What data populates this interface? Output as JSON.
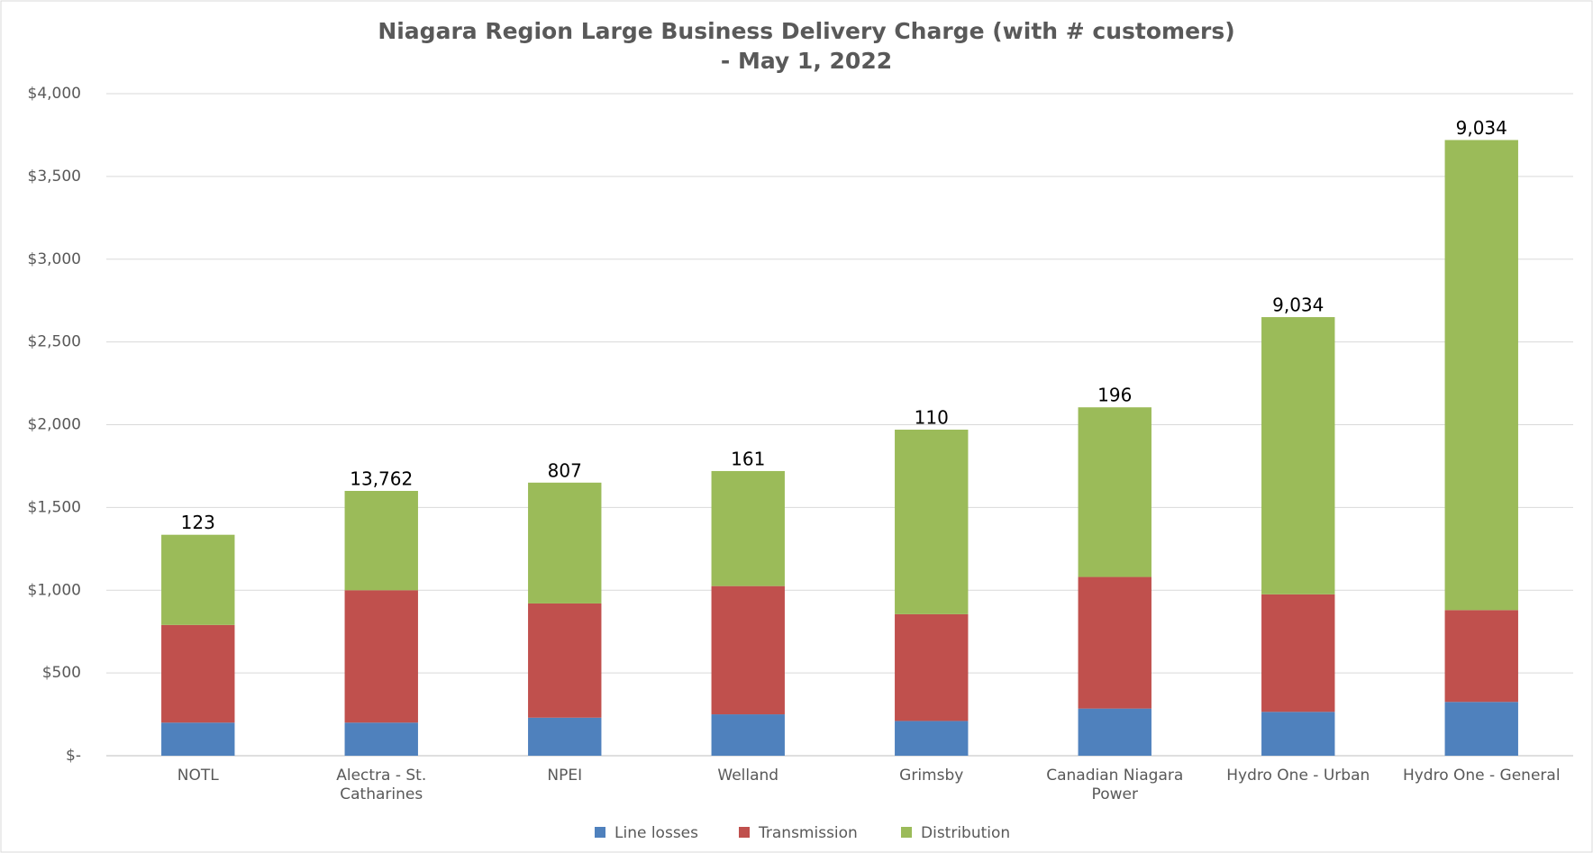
{
  "chart_data": {
    "type": "stacked_bar",
    "title": "Niagara Region Large Business Delivery Charge (with # customers)",
    "subtitle": "- May 1, 2022",
    "categories": [
      "NOTL",
      "Alectra - St. Catharines",
      "NPEI",
      "Welland",
      "Grimsby",
      "Canadian Niagara Power",
      "Hydro One - Urban",
      "Hydro One - General"
    ],
    "series": [
      {
        "name": "Line losses",
        "color": "#4f81bd",
        "values": [
          200,
          200,
          230,
          250,
          210,
          285,
          265,
          325
        ]
      },
      {
        "name": "Transmission",
        "color": "#c0504d",
        "values": [
          590,
          800,
          690,
          775,
          645,
          795,
          710,
          555
        ]
      },
      {
        "name": "Distribution",
        "color": "#9bbb59",
        "values": [
          545,
          600,
          730,
          695,
          1115,
          1025,
          1675,
          2840
        ]
      }
    ],
    "customers": [
      "123",
      "13,762",
      "807",
      "161",
      "110",
      "196",
      "9,034",
      "9,034"
    ],
    "ylim": [
      0,
      4000
    ],
    "yticks": [
      {
        "value": 0,
        "label": "$-"
      },
      {
        "value": 500,
        "label": "$500"
      },
      {
        "value": 1000,
        "label": "$1,000"
      },
      {
        "value": 1500,
        "label": "$1,500"
      },
      {
        "value": 2000,
        "label": "$2,000"
      },
      {
        "value": 2500,
        "label": "$2,500"
      },
      {
        "value": 3000,
        "label": "$3,000"
      },
      {
        "value": 3500,
        "label": "$3,500"
      },
      {
        "value": 4000,
        "label": "$4,000"
      }
    ],
    "grid": true,
    "legend": "bottom"
  }
}
